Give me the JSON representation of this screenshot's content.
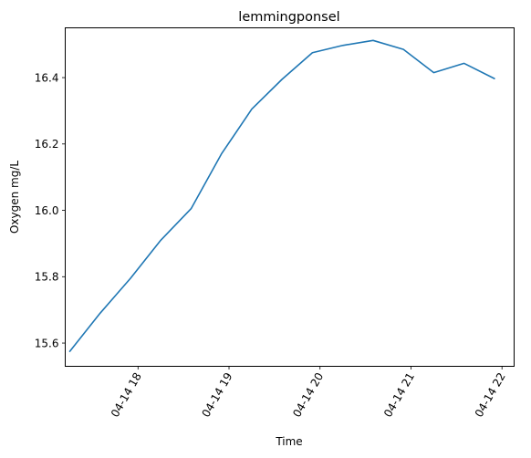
{
  "chart_data": {
    "type": "line",
    "title": "lemmingponsel",
    "xlabel": "Time",
    "ylabel": "Oxygen mg/L",
    "x_tick_labels": [
      "04-14 18",
      "04-14 19",
      "04-14 20",
      "04-14 21",
      "04-14 22"
    ],
    "y_tick_labels": [
      "15.6",
      "15.8",
      "16.0",
      "16.2",
      "16.4"
    ],
    "xlim": [
      "2024-04-14T17:12",
      "2024-04-14T22:08"
    ],
    "ylim": [
      15.53,
      16.55
    ],
    "grid": false,
    "series_color": "#1f77b4",
    "series": [
      {
        "x": [
          "2024-04-14T17:15",
          "2024-04-14T17:35",
          "2024-04-14T17:55",
          "2024-04-14T18:15",
          "2024-04-14T18:35",
          "2024-04-14T18:55",
          "2024-04-14T19:15",
          "2024-04-14T19:35",
          "2024-04-14T19:55",
          "2024-04-14T20:15",
          "2024-04-14T20:35",
          "2024-04-14T20:55",
          "2024-04-14T21:15",
          "2024-04-14T21:35",
          "2024-04-14T21:55"
        ],
        "values": [
          15.575,
          15.69,
          15.795,
          15.91,
          16.005,
          16.17,
          16.305,
          16.395,
          16.475,
          16.497,
          16.512,
          16.485,
          16.415,
          16.443,
          16.397
        ]
      }
    ]
  }
}
